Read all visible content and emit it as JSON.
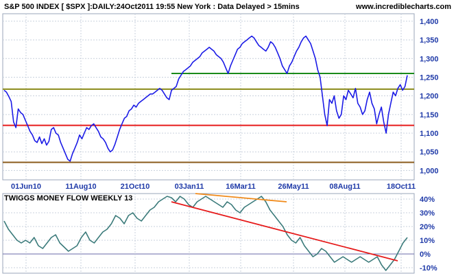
{
  "header": {
    "title": "S&P 500 INDEX [ $SPX ]:DAILY:24Oct2011 19:55 New York   : Data Delayed > 15mins",
    "site": "www.incrediblecharts.com"
  },
  "colors": {
    "price_line": "#1a1ae6",
    "oscillator_line": "#3a7a7a",
    "green_level": "#1a8a1a",
    "olive_level": "#8a8a1a",
    "red_level": "#e61a1a",
    "brown_level": "#8a5a1a",
    "orange_trend": "#f08a1a",
    "red_trend": "#e61a1a",
    "grid": "#c8d0dc",
    "axis_text": "#1f3aa8",
    "zero_line": "#6a6aa8"
  },
  "chart_data": [
    {
      "type": "line",
      "title": "S&P 500 INDEX [ $SPX ]:DAILY:24Oct2011 19:55 New York   : Data Delayed > 15mins",
      "x_tick_labels": [
        "01Jun10",
        "11Aug10",
        "21Oct10",
        "03Jan11",
        "16Mar11",
        "26May11",
        "08Aug11",
        "18Oct11"
      ],
      "y_tick_labels": [
        "1,000",
        "1,050",
        "1,100",
        "1,150",
        "1,200",
        "1,250",
        "1,300",
        "1,350",
        "1,400"
      ],
      "ylim": [
        975,
        1420
      ],
      "y_scale": "linear",
      "grid": true,
      "series": [
        {
          "values": [
            1215,
            1210,
            1198,
            1185,
            1130,
            1115,
            1165,
            1155,
            1150,
            1135,
            1120,
            1105,
            1095,
            1080,
            1075,
            1090,
            1072,
            1085,
            1068,
            1078,
            1110,
            1115,
            1100,
            1095,
            1075,
            1060,
            1045,
            1030,
            1025,
            1045,
            1060,
            1075,
            1095,
            1085,
            1100,
            1115,
            1110,
            1120,
            1125,
            1115,
            1105,
            1090,
            1085,
            1075,
            1060,
            1050,
            1055,
            1070,
            1090,
            1110,
            1125,
            1140,
            1145,
            1160,
            1165,
            1175,
            1170,
            1180,
            1185,
            1190,
            1195,
            1200,
            1205,
            1205,
            1210,
            1215,
            1220,
            1215,
            1205,
            1195,
            1190,
            1215,
            1220,
            1225,
            1245,
            1255,
            1265,
            1270,
            1275,
            1280,
            1290,
            1295,
            1300,
            1305,
            1315,
            1320,
            1325,
            1330,
            1325,
            1320,
            1310,
            1305,
            1300,
            1290,
            1275,
            1260,
            1280,
            1295,
            1310,
            1325,
            1330,
            1340,
            1345,
            1350,
            1355,
            1360,
            1355,
            1345,
            1335,
            1330,
            1325,
            1320,
            1330,
            1345,
            1340,
            1330,
            1315,
            1300,
            1280,
            1270,
            1260,
            1280,
            1290,
            1305,
            1320,
            1330,
            1345,
            1355,
            1360,
            1350,
            1340,
            1320,
            1300,
            1270,
            1250,
            1200,
            1150,
            1120,
            1190,
            1180,
            1200,
            1160,
            1140,
            1150,
            1200,
            1190,
            1215,
            1205,
            1195,
            1220,
            1180,
            1170,
            1150,
            1160,
            1190,
            1210,
            1180,
            1165,
            1125,
            1150,
            1170,
            1130,
            1100,
            1150,
            1180,
            1210,
            1200,
            1220,
            1230,
            1215,
            1225,
            1255
          ],
          "color": "#1a1ae6"
        }
      ],
      "horizontal_levels": [
        {
          "y": 1260,
          "color": "#1a8a1a",
          "x_start": 1070,
          "x_end": 1400
        },
        {
          "y": 1218,
          "color": "#8a8a1a"
        },
        {
          "y": 1121,
          "color": "#e61a1a"
        },
        {
          "y": 1022,
          "color": "#8a5a1a"
        }
      ]
    },
    {
      "type": "line",
      "title": "TWIGGS MONEY FLOW WEEKLY 13",
      "y_tick_labels": [
        "40%",
        "30%",
        "20%",
        "10%",
        "0%",
        "-10%"
      ],
      "ylim": [
        -14,
        44
      ],
      "grid": true,
      "series": [
        {
          "values": [
            24,
            18,
            14,
            10,
            8,
            10,
            8,
            12,
            6,
            4,
            8,
            12,
            14,
            8,
            5,
            2,
            4,
            6,
            12,
            16,
            10,
            8,
            12,
            16,
            18,
            22,
            28,
            26,
            22,
            28,
            30,
            26,
            24,
            28,
            32,
            34,
            38,
            40,
            42,
            41,
            38,
            42,
            40,
            36,
            34,
            38,
            40,
            42,
            40,
            38,
            36,
            34,
            38,
            36,
            32,
            30,
            34,
            36,
            38,
            40,
            42,
            38,
            32,
            28,
            24,
            20,
            14,
            10,
            8,
            12,
            6,
            2,
            -2,
            0,
            4,
            2,
            -2,
            -6,
            -4,
            -2,
            -4,
            -6,
            -4,
            -2,
            -4,
            -6,
            -4,
            -2,
            -8,
            -12,
            -8,
            -4,
            2,
            8,
            12
          ],
          "color": "#3a7a7a"
        }
      ],
      "trend_lines": [
        {
          "from": [
            0,
            44
          ],
          "to": [
            39,
            38
          ],
          "color": "#f08a1a"
        },
        {
          "from": [
            39,
            38
          ],
          "to": [
            92,
            -5
          ],
          "color": "#e61a1a"
        }
      ]
    }
  ]
}
